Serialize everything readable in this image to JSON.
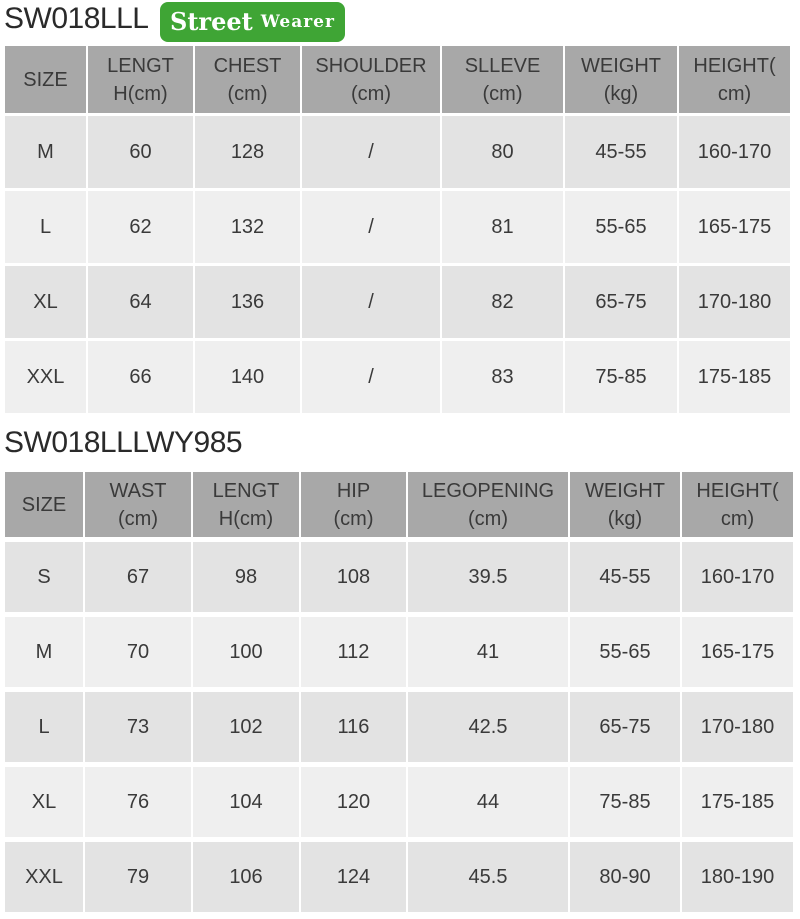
{
  "table1": {
    "title": "SW018LLL",
    "headers": [
      "SIZE",
      "LENGT\nH(cm)",
      "CHEST\n(cm)",
      "SHOULDER\n(cm)",
      "SLLEVE\n(cm)",
      "WEIGHT\n(kg)",
      "HEIGHT(\ncm)"
    ],
    "rows": [
      [
        "M",
        "60",
        "128",
        "/",
        "80",
        "45-55",
        "160-170"
      ],
      [
        "L",
        "62",
        "132",
        "/",
        "81",
        "55-65",
        "165-175"
      ],
      [
        "XL",
        "64",
        "136",
        "/",
        "82",
        "65-75",
        "170-180"
      ],
      [
        "XXL",
        "66",
        "140",
        "/",
        "83",
        "75-85",
        "175-185"
      ]
    ]
  },
  "table2": {
    "title": "SW018LLLWY985",
    "headers": [
      "SIZE",
      "WAST\n(cm)",
      "LENGT\nH(cm)",
      "HIP\n(cm)",
      "LEGOPENING\n(cm)",
      "WEIGHT\n(kg)",
      "HEIGHT(\ncm)"
    ],
    "rows": [
      [
        "S",
        "67",
        "98",
        "108",
        "39.5",
        "45-55",
        "160-170"
      ],
      [
        "M",
        "70",
        "100",
        "112",
        "41",
        "55-65",
        "165-175"
      ],
      [
        "L",
        "73",
        "102",
        "116",
        "42.5",
        "65-75",
        "170-180"
      ],
      [
        "XL",
        "76",
        "104",
        "120",
        "44",
        "75-85",
        "175-185"
      ],
      [
        "XXL",
        "79",
        "106",
        "124",
        "45.5",
        "80-90",
        "180-190"
      ]
    ]
  },
  "watermark": {
    "line1": "Street",
    "line2": "Wearer",
    "color": "#3fa535"
  }
}
